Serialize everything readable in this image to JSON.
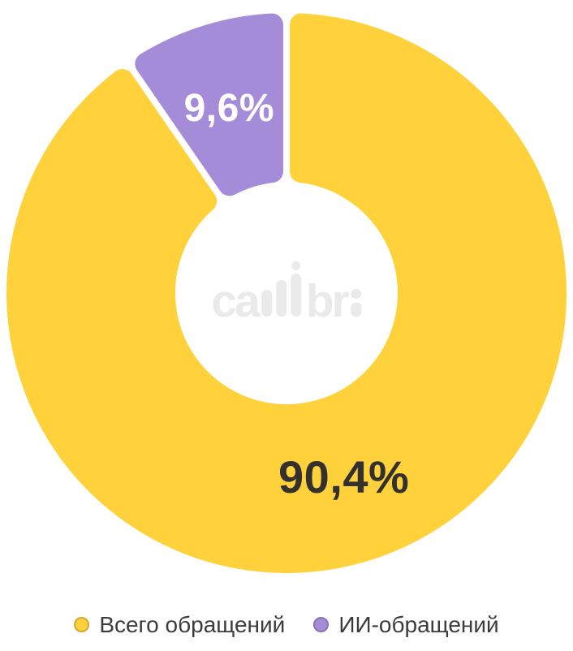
{
  "page": {
    "background": "#FFFFFF"
  },
  "chart_data": {
    "type": "pie",
    "variant": "donut",
    "title": "",
    "start_angle": "top",
    "direction": "clockwise",
    "legend_position": "bottom",
    "grid": false,
    "center_watermark": "callibri",
    "series": [
      {
        "name": "Всего обращений",
        "value": 90.4,
        "percent_label": "90,4%",
        "color": "#FFD23B",
        "label_color": "#33302D",
        "legend_marker_border": "#D1A833"
      },
      {
        "name": "ИИ-обращений",
        "value": 9.6,
        "percent_label": "9,6%",
        "color": "#A58CD8",
        "label_color": "#FFFFFF",
        "legend_marker_border": "#8A74B0"
      }
    ]
  },
  "watermark": {
    "full": "callibri",
    "part1": "ca",
    "part2": "br",
    "color": "#EAEAEA"
  }
}
